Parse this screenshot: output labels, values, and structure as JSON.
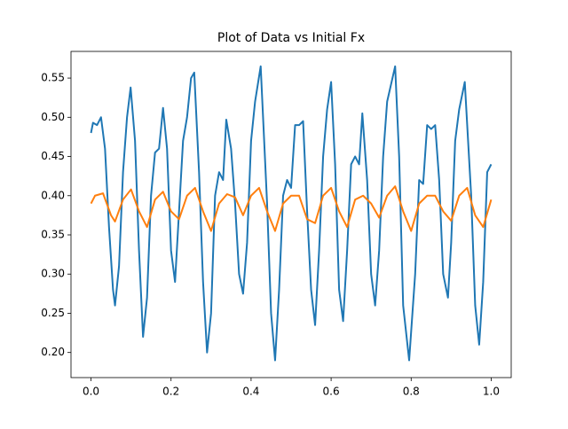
{
  "chart_data": {
    "type": "line",
    "title": "Plot of Data vs Initial Fx",
    "series": [
      {
        "color": "#1f77b4",
        "x": [
          0.0,
          0.005,
          0.015,
          0.025,
          0.035,
          0.045,
          0.055,
          0.06,
          0.07,
          0.08,
          0.09,
          0.099,
          0.11,
          0.12,
          0.13,
          0.14,
          0.15,
          0.16,
          0.17,
          0.18,
          0.19,
          0.2,
          0.21,
          0.22,
          0.23,
          0.24,
          0.25,
          0.258,
          0.27,
          0.28,
          0.29,
          0.3,
          0.31,
          0.32,
          0.33,
          0.338,
          0.35,
          0.36,
          0.37,
          0.38,
          0.39,
          0.4,
          0.41,
          0.424,
          0.44,
          0.45,
          0.46,
          0.47,
          0.48,
          0.49,
          0.5,
          0.51,
          0.52,
          0.53,
          0.54,
          0.55,
          0.56,
          0.57,
          0.58,
          0.59,
          0.6,
          0.61,
          0.62,
          0.63,
          0.64,
          0.65,
          0.66,
          0.67,
          0.678,
          0.69,
          0.7,
          0.71,
          0.72,
          0.73,
          0.74,
          0.76,
          0.77,
          0.78,
          0.795,
          0.81,
          0.82,
          0.83,
          0.84,
          0.85,
          0.86,
          0.87,
          0.88,
          0.892,
          0.9,
          0.91,
          0.92,
          0.934,
          0.95,
          0.96,
          0.97,
          0.98,
          0.99,
          1.0
        ],
        "values": [
          0.48,
          0.493,
          0.49,
          0.5,
          0.46,
          0.36,
          0.28,
          0.26,
          0.31,
          0.43,
          0.5,
          0.538,
          0.47,
          0.33,
          0.22,
          0.27,
          0.4,
          0.455,
          0.46,
          0.512,
          0.46,
          0.33,
          0.29,
          0.38,
          0.47,
          0.5,
          0.55,
          0.557,
          0.43,
          0.29,
          0.2,
          0.25,
          0.4,
          0.43,
          0.42,
          0.497,
          0.46,
          0.39,
          0.3,
          0.275,
          0.34,
          0.47,
          0.52,
          0.565,
          0.39,
          0.25,
          0.19,
          0.28,
          0.4,
          0.42,
          0.41,
          0.49,
          0.49,
          0.495,
          0.38,
          0.28,
          0.235,
          0.33,
          0.45,
          0.51,
          0.545,
          0.44,
          0.28,
          0.24,
          0.33,
          0.44,
          0.45,
          0.44,
          0.505,
          0.42,
          0.3,
          0.26,
          0.33,
          0.45,
          0.52,
          0.565,
          0.45,
          0.26,
          0.19,
          0.3,
          0.42,
          0.415,
          0.49,
          0.485,
          0.49,
          0.42,
          0.3,
          0.27,
          0.34,
          0.47,
          0.51,
          0.545,
          0.4,
          0.26,
          0.21,
          0.29,
          0.43,
          0.44
        ]
      },
      {
        "color": "#ff7f0e",
        "x": [
          0.0,
          0.01,
          0.03,
          0.05,
          0.06,
          0.08,
          0.1,
          0.12,
          0.14,
          0.16,
          0.18,
          0.2,
          0.22,
          0.24,
          0.26,
          0.28,
          0.3,
          0.32,
          0.34,
          0.36,
          0.38,
          0.4,
          0.42,
          0.44,
          0.46,
          0.48,
          0.5,
          0.52,
          0.54,
          0.56,
          0.58,
          0.6,
          0.62,
          0.64,
          0.66,
          0.68,
          0.7,
          0.72,
          0.74,
          0.76,
          0.78,
          0.8,
          0.82,
          0.84,
          0.86,
          0.88,
          0.9,
          0.92,
          0.94,
          0.96,
          0.98,
          1.0
        ],
        "values": [
          0.39,
          0.4,
          0.403,
          0.375,
          0.367,
          0.395,
          0.408,
          0.38,
          0.36,
          0.395,
          0.405,
          0.38,
          0.37,
          0.4,
          0.41,
          0.38,
          0.355,
          0.39,
          0.402,
          0.398,
          0.375,
          0.4,
          0.41,
          0.38,
          0.355,
          0.39,
          0.4,
          0.4,
          0.37,
          0.365,
          0.4,
          0.41,
          0.38,
          0.36,
          0.395,
          0.4,
          0.39,
          0.372,
          0.4,
          0.412,
          0.38,
          0.355,
          0.39,
          0.4,
          0.4,
          0.38,
          0.368,
          0.4,
          0.41,
          0.375,
          0.36,
          0.395
        ]
      }
    ],
    "xlim": [
      -0.05,
      1.05
    ],
    "ylim": [
      0.168,
      0.584
    ],
    "xticks": [
      {
        "value": 0,
        "label": "0.0"
      },
      0.2,
      0.4,
      0.6,
      0.8,
      {
        "value": 1,
        "label": "1.0"
      }
    ],
    "yticks": [
      {
        "value": 0.2,
        "label": "0.20"
      },
      0.25,
      {
        "value": 0.3,
        "label": "0.30"
      },
      0.35,
      {
        "value": 0.4,
        "label": "0.40"
      },
      0.45,
      {
        "value": 0.5,
        "label": "0.50"
      },
      0.55
    ]
  }
}
